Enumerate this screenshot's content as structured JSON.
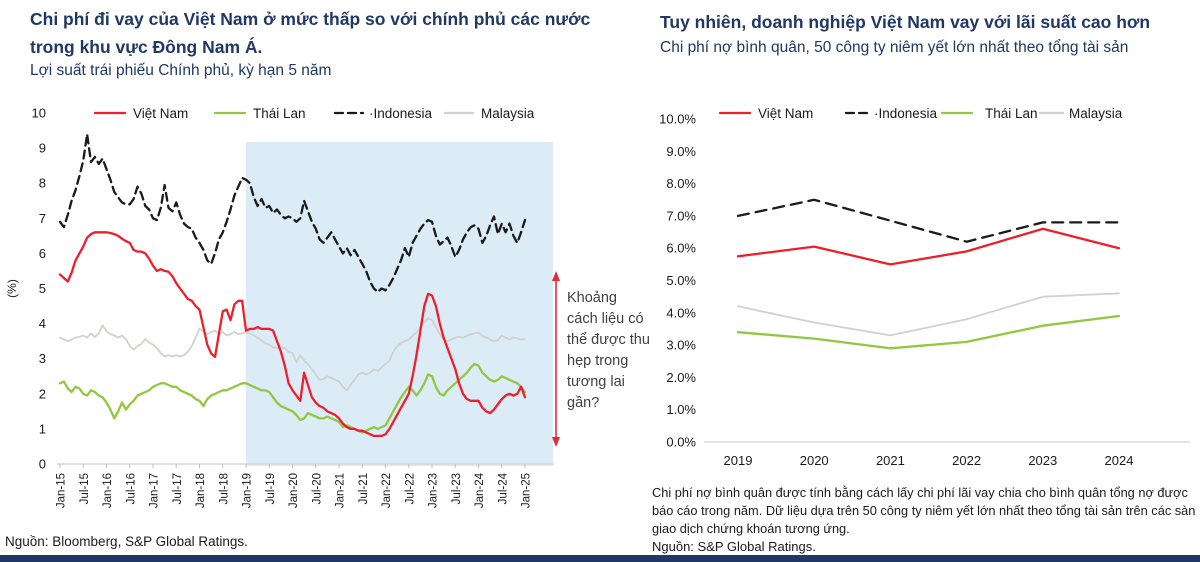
{
  "page": {
    "accent_navy": "#1f3864",
    "footer_bar_color": "#1f3864",
    "background": "#ffffff"
  },
  "left_panel": {
    "title": "Chi phí đi vay của Việt Nam ở mức thấp so với chính phủ các nước trong khu vực Đông Nam Á.",
    "subtitle": "Lợi suất trái phiếu Chính phủ, kỳ hạn 5 năm",
    "source": "Nguồn: Bloomberg, S&P Global Ratings.",
    "annotation": "Khoảng cách liệu có thể được thu hẹp trong tương lai gần?"
  },
  "right_panel": {
    "title": "Tuy nhiên, doanh nghiệp Việt Nam vay với lãi suất cao hơn",
    "subtitle": "Chi phí nợ bình quân, 50 công ty niêm yết lớn nhất theo tổng tài sản",
    "note": "Chi phí nợ bình quân được tính bằng cách lấy chi phí lãi vay chia cho bình quân tổng nợ được báo cáo trong năm. Dữ liệu dựa trên 50 công ty niêm yết lớn nhất theo tổng tài sản trên các sàn giao dịch chứng khoán tương ứng.",
    "source": "Nguồn:  S&P Global Ratings."
  },
  "chart_data": [
    {
      "type": "line",
      "title": "Chi phí đi vay của Việt Nam ở mức thấp so với chính phủ các nước trong khu vực Đông Nam Á.",
      "subtitle": "Lợi suất trái phiếu Chính phủ, kỳ hạn 5 năm",
      "ylabel": "(%)",
      "ylim": [
        0,
        10
      ],
      "yticks": [
        0,
        1,
        2,
        3,
        4,
        5,
        6,
        7,
        8,
        9,
        10
      ],
      "grid": false,
      "legend_position": "top",
      "x_unit": "monthly",
      "x_start": "Jan-15",
      "x_end": "Jan-25",
      "xtick_labels": [
        "Jan-15",
        "Jul-15",
        "Jan-16",
        "Jul-16",
        "Jan-17",
        "Jul-17",
        "Jan-18",
        "Jul-18",
        "Jan-19",
        "Jul-19",
        "Jan-20",
        "Jul-20",
        "Jan-21",
        "Jul-21",
        "Jan-22",
        "Jul-22",
        "Jan-23",
        "Jul-23",
        "Jan-24",
        "Jul-24",
        "Jan-25"
      ],
      "highlight_region": {
        "from": "Jan-19",
        "to": "beyond Jan-25",
        "color": "#dbecf7"
      },
      "annotation": {
        "text": "Khoảng cách liệu có thể được thu hẹp trong tương lai gần?",
        "arrow": "vertical-double",
        "color": "#e8273c"
      },
      "series": [
        {
          "name": "Việt Nam",
          "legend_label": "Việt Nam",
          "color": "#ee1f2d",
          "style": "solid",
          "values": [
            5.4,
            5.3,
            5.2,
            5.45,
            5.8,
            6.0,
            6.2,
            6.45,
            6.55,
            6.6,
            6.6,
            6.6,
            6.6,
            6.58,
            6.55,
            6.5,
            6.42,
            6.35,
            6.3,
            6.1,
            6.05,
            6.05,
            6.0,
            5.85,
            5.65,
            5.5,
            5.55,
            5.5,
            5.48,
            5.35,
            5.15,
            5.0,
            4.85,
            4.7,
            4.65,
            4.5,
            4.4,
            3.9,
            3.4,
            3.15,
            3.05,
            3.7,
            4.35,
            4.4,
            4.1,
            4.55,
            4.65,
            4.65,
            3.8,
            3.85,
            3.85,
            3.9,
            3.85,
            3.85,
            3.85,
            3.8,
            3.5,
            3.2,
            2.8,
            2.3,
            2.1,
            1.95,
            1.8,
            2.6,
            2.25,
            1.9,
            1.75,
            1.65,
            1.6,
            1.5,
            1.45,
            1.4,
            1.3,
            1.15,
            1.05,
            1.0,
            1.0,
            0.95,
            0.95,
            0.9,
            0.85,
            0.8,
            0.8,
            0.8,
            0.85,
            1.0,
            1.2,
            1.4,
            1.6,
            1.8,
            2.0,
            2.5,
            3.1,
            3.8,
            4.5,
            4.85,
            4.8,
            4.5,
            4.0,
            3.6,
            3.3,
            3.0,
            2.7,
            2.3,
            2.0,
            1.85,
            1.8,
            1.8,
            1.8,
            1.6,
            1.5,
            1.45,
            1.55,
            1.7,
            1.85,
            1.95,
            2.0,
            1.95,
            2.0,
            2.2,
            1.9
          ]
        },
        {
          "name": "Thái Lan",
          "legend_label": "Thái Lan",
          "color": "#92c740",
          "style": "solid",
          "values": [
            2.3,
            2.35,
            2.15,
            2.05,
            2.2,
            2.15,
            2.0,
            1.95,
            2.1,
            2.05,
            1.95,
            1.9,
            1.75,
            1.55,
            1.3,
            1.5,
            1.75,
            1.55,
            1.7,
            1.8,
            1.95,
            2.0,
            2.05,
            2.1,
            2.2,
            2.25,
            2.3,
            2.3,
            2.25,
            2.2,
            2.2,
            2.1,
            2.05,
            2.0,
            1.95,
            1.85,
            1.8,
            1.65,
            1.85,
            1.95,
            2.0,
            2.05,
            2.1,
            2.1,
            2.15,
            2.2,
            2.25,
            2.3,
            2.3,
            2.25,
            2.2,
            2.15,
            2.1,
            2.1,
            2.05,
            1.9,
            1.75,
            1.65,
            1.6,
            1.55,
            1.5,
            1.4,
            1.25,
            1.3,
            1.45,
            1.4,
            1.35,
            1.3,
            1.3,
            1.35,
            1.3,
            1.25,
            1.2,
            1.05,
            1.1,
            1.05,
            1.0,
            0.95,
            0.9,
            0.95,
            1.0,
            1.05,
            1.0,
            1.05,
            1.1,
            1.3,
            1.5,
            1.7,
            1.9,
            2.05,
            2.2,
            2.1,
            1.95,
            2.1,
            2.3,
            2.55,
            2.5,
            2.2,
            2.0,
            1.95,
            2.1,
            2.2,
            2.3,
            2.4,
            2.5,
            2.6,
            2.75,
            2.85,
            2.8,
            2.6,
            2.5,
            2.4,
            2.35,
            2.4,
            2.5,
            2.45,
            2.4,
            2.35,
            2.3,
            2.2,
            2.05
          ]
        },
        {
          "name": "Indonesia",
          "legend_label": "·Indonesia",
          "color": "#1a1a1a",
          "style": "dashed",
          "values": [
            6.9,
            6.75,
            7.1,
            7.5,
            7.8,
            8.2,
            8.65,
            9.4,
            8.6,
            8.75,
            8.55,
            8.7,
            8.4,
            8.1,
            7.75,
            7.6,
            7.45,
            7.4,
            7.4,
            7.55,
            7.9,
            7.7,
            7.35,
            7.25,
            7.0,
            6.95,
            7.3,
            7.95,
            7.3,
            7.2,
            7.45,
            7.1,
            6.85,
            6.75,
            6.7,
            6.45,
            6.3,
            6.1,
            5.8,
            5.7,
            6.0,
            6.4,
            6.6,
            6.9,
            7.25,
            7.65,
            7.9,
            8.15,
            8.1,
            8.0,
            7.6,
            7.35,
            7.55,
            7.3,
            7.35,
            7.15,
            7.25,
            7.1,
            7.0,
            7.05,
            7.0,
            6.9,
            7.0,
            7.5,
            7.2,
            6.9,
            6.7,
            6.4,
            6.3,
            6.45,
            6.6,
            6.4,
            6.2,
            6.0,
            6.15,
            5.95,
            6.1,
            5.9,
            5.7,
            5.5,
            5.2,
            5.0,
            4.9,
            5.0,
            4.95,
            5.1,
            5.3,
            5.55,
            5.8,
            6.15,
            5.9,
            6.3,
            6.5,
            6.7,
            6.85,
            6.95,
            6.9,
            6.5,
            6.25,
            6.35,
            6.45,
            6.2,
            5.9,
            6.1,
            6.4,
            6.6,
            6.75,
            6.8,
            6.7,
            6.3,
            6.5,
            6.8,
            7.05,
            6.55,
            6.85,
            6.6,
            6.85,
            6.5,
            6.3,
            6.6,
            6.95
          ]
        },
        {
          "name": "Malaysia",
          "legend_label": "Malaysia",
          "color": "#d3d0cd",
          "style": "solid",
          "values": [
            3.6,
            3.55,
            3.5,
            3.55,
            3.6,
            3.62,
            3.66,
            3.6,
            3.72,
            3.62,
            3.72,
            3.95,
            3.78,
            3.7,
            3.66,
            3.6,
            3.66,
            3.56,
            3.36,
            3.26,
            3.36,
            3.42,
            3.56,
            3.46,
            3.4,
            3.3,
            3.16,
            3.06,
            3.1,
            3.06,
            3.1,
            3.06,
            3.1,
            3.2,
            3.36,
            3.6,
            3.86,
            3.76,
            3.7,
            3.76,
            3.8,
            3.7,
            3.76,
            3.66,
            3.7,
            3.76,
            3.7,
            3.72,
            3.76,
            3.72,
            3.66,
            3.6,
            3.52,
            3.44,
            3.4,
            3.32,
            3.3,
            3.34,
            3.3,
            3.2,
            3.16,
            2.9,
            3.1,
            2.95,
            2.85,
            2.7,
            2.55,
            2.4,
            2.42,
            2.5,
            2.45,
            2.4,
            2.35,
            2.2,
            2.1,
            2.25,
            2.4,
            2.55,
            2.6,
            2.55,
            2.6,
            2.7,
            2.65,
            2.75,
            2.85,
            2.95,
            3.2,
            3.35,
            3.45,
            3.5,
            3.55,
            3.65,
            3.75,
            3.9,
            4.05,
            4.15,
            4.1,
            3.9,
            3.7,
            3.55,
            3.5,
            3.55,
            3.6,
            3.62,
            3.6,
            3.65,
            3.7,
            3.72,
            3.74,
            3.65,
            3.6,
            3.55,
            3.5,
            3.52,
            3.66,
            3.6,
            3.55,
            3.6,
            3.58,
            3.55,
            3.55
          ]
        }
      ]
    },
    {
      "type": "line",
      "title": "Tuy nhiên, doanh nghiệp Việt Nam vay với lãi suất cao hơn",
      "subtitle": "Chi phí nợ bình quân, 50 công ty niêm yết lớn nhất theo tổng tài sản",
      "categories": [
        "2019",
        "2020",
        "2021",
        "2022",
        "2023",
        "2024"
      ],
      "ylim": [
        0,
        10
      ],
      "yticks": [
        0,
        1,
        2,
        3,
        4,
        5,
        6,
        7,
        8,
        9,
        10
      ],
      "ytick_labels": [
        "0.0%",
        "1.0%",
        "2.0%",
        "3.0%",
        "4.0%",
        "5.0%",
        "6.0%",
        "7.0%",
        "8.0%",
        "9.0%",
        "10.0%"
      ],
      "grid": false,
      "legend_position": "top",
      "series": [
        {
          "name": "Việt Nam",
          "legend_label": "Việt Nam",
          "color": "#ee1f2d",
          "style": "solid",
          "values": [
            5.75,
            6.05,
            5.5,
            5.9,
            6.6,
            6.0
          ]
        },
        {
          "name": "Indonesia",
          "legend_label": "·Indonesia",
          "color": "#1a1a1a",
          "style": "dashed",
          "values": [
            7.0,
            7.5,
            6.85,
            6.2,
            6.8,
            6.8
          ]
        },
        {
          "name": "Thái Lan",
          "legend_label": "Thái Lan",
          "color": "#92c740",
          "style": "solid",
          "values": [
            3.4,
            3.2,
            2.9,
            3.1,
            3.6,
            3.9
          ]
        },
        {
          "name": "Malaysia",
          "legend_label": "Malaysia",
          "color": "#d3d0cd",
          "style": "solid",
          "values": [
            4.2,
            3.7,
            3.3,
            3.8,
            4.5,
            4.6
          ]
        }
      ]
    }
  ]
}
